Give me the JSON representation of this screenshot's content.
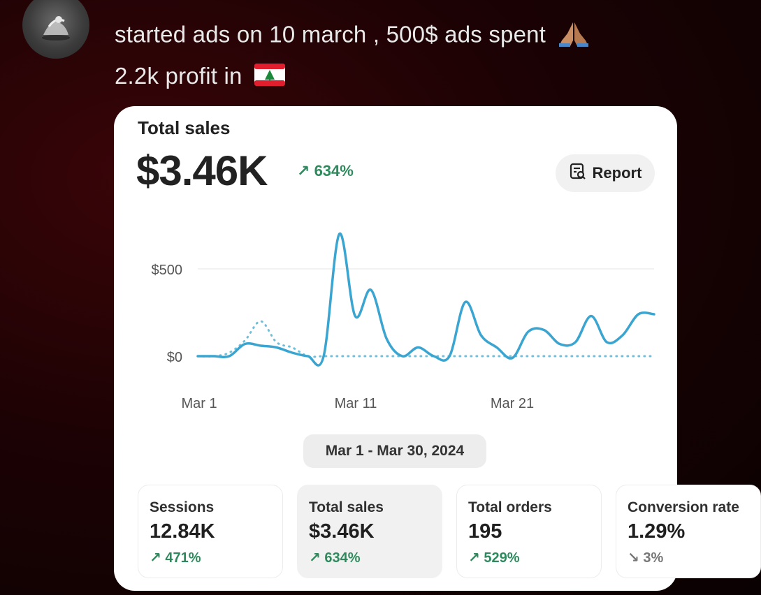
{
  "post": {
    "line1": "started ads on 10 march , 500$ ads spent",
    "line2": "2.2k profit in",
    "emoji_line1": "folded-hands-emoji",
    "emoji_line2": "lebanon-flag-emoji"
  },
  "card": {
    "title": "Total sales",
    "total": "$3.46K",
    "total_delta": "634%",
    "report_label": "Report",
    "date_range": "Mar 1 - Mar 30, 2024"
  },
  "chart_data": {
    "type": "line",
    "ylabel": "",
    "y_ticks": [
      "$500",
      "$0"
    ],
    "x_ticks": [
      "Mar 1",
      "Mar 11",
      "Mar 21"
    ],
    "ylim": [
      0,
      500
    ],
    "x": [
      "Mar 1",
      "Mar 2",
      "Mar 3",
      "Mar 4",
      "Mar 5",
      "Mar 6",
      "Mar 7",
      "Mar 8",
      "Mar 9",
      "Mar 10",
      "Mar 11",
      "Mar 12",
      "Mar 13",
      "Mar 14",
      "Mar 15",
      "Mar 16",
      "Mar 17",
      "Mar 18",
      "Mar 19",
      "Mar 20",
      "Mar 21",
      "Mar 22",
      "Mar 23",
      "Mar 24",
      "Mar 25",
      "Mar 26",
      "Mar 27",
      "Mar 28",
      "Mar 29",
      "Mar 30"
    ],
    "series": [
      {
        "style": "solid",
        "color": "#3aa5d0",
        "values": [
          0,
          0,
          0,
          70,
          60,
          50,
          20,
          0,
          0,
          700,
          230,
          380,
          100,
          0,
          50,
          0,
          0,
          310,
          120,
          50,
          -10,
          140,
          150,
          70,
          80,
          230,
          80,
          120,
          240,
          240
        ]
      },
      {
        "style": "dotted",
        "color": "#6cc0dc",
        "values": [
          0,
          0,
          20,
          90,
          200,
          80,
          50,
          0,
          0,
          0,
          0,
          0,
          0,
          0,
          0,
          0,
          0,
          0,
          0,
          0,
          0,
          0,
          0,
          0,
          0,
          0,
          0,
          0,
          0,
          0
        ]
      }
    ],
    "grid": true
  },
  "metrics": [
    {
      "label": "Sessions",
      "value": "12.84K",
      "delta": "471%",
      "direction": "up"
    },
    {
      "label": "Total sales",
      "value": "$3.46K",
      "delta": "634%",
      "direction": "up"
    },
    {
      "label": "Total orders",
      "value": "195",
      "delta": "529%",
      "direction": "up"
    },
    {
      "label": "Conversion rate",
      "value": "1.29%",
      "delta": "3%",
      "direction": "down"
    }
  ],
  "colors": {
    "accent_line": "#3aa5d0",
    "positive": "#2e8a5c"
  }
}
